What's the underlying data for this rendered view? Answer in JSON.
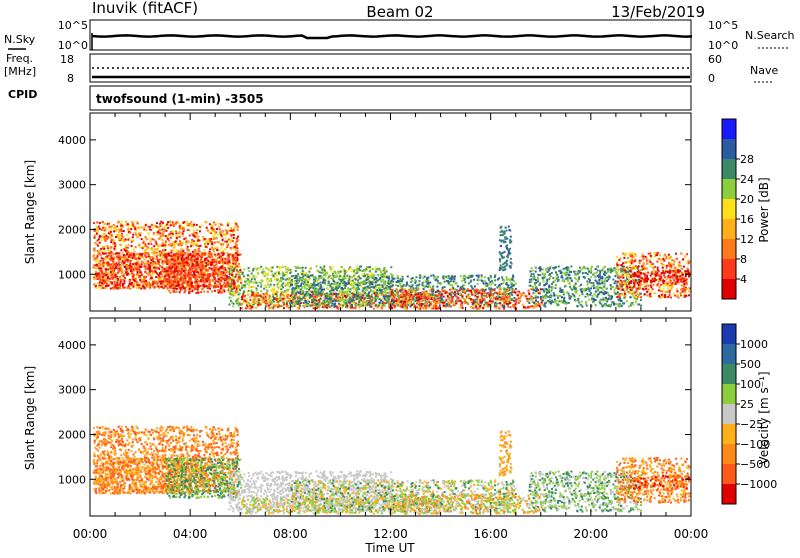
{
  "header": {
    "station": "Inuvik (fitACF)",
    "beam": "Beam 02",
    "date": "13/Feb/2019"
  },
  "top_panels": {
    "nsky_label": "N.Sky",
    "nsky_ticks": [
      "10^5",
      "10^0"
    ],
    "nsearch_label": "N.Search",
    "nsearch_ticks": [
      "10^5",
      "10^0"
    ],
    "freq_label_1": "Freq.",
    "freq_label_2": "[MHz]",
    "freq_ticks": [
      "18",
      "8"
    ],
    "nave_label": "Nave",
    "nave_ticks": [
      "60",
      "0"
    ],
    "cpid_label": "CPID",
    "cpid_value": "twofsound (1-min) -3505"
  },
  "chart_data": [
    {
      "type": "heatmap",
      "title": "",
      "xlabel": "",
      "ylabel": "Slant Range [km]",
      "xlim": [
        "00:00",
        "24:00"
      ],
      "ylim": [
        180,
        4600
      ],
      "y_ticks": [
        1000,
        2000,
        3000,
        4000
      ],
      "x_ticks": [
        "00:00",
        "04:00",
        "08:00",
        "12:00",
        "16:00",
        "20:00",
        "00:00"
      ],
      "colorbar": {
        "label": "Power [dB]",
        "ticks": [
          "4",
          "8",
          "12",
          "16",
          "20",
          "24",
          "28"
        ],
        "colors": [
          "#1a1aff",
          "#2d5aa0",
          "#3a8a68",
          "#8ccf3a",
          "#ffe01a",
          "#ffb01a",
          "#ff7a1a",
          "#ff3a1a",
          "#e00000"
        ]
      }
    },
    {
      "type": "heatmap",
      "title": "",
      "xlabel": "Time UT",
      "ylabel": "Slant Range [km]",
      "xlim": [
        "00:00",
        "24:00"
      ],
      "ylim": [
        180,
        4600
      ],
      "y_ticks": [
        1000,
        2000,
        3000,
        4000
      ],
      "x_ticks": [
        "00:00",
        "04:00",
        "08:00",
        "12:00",
        "16:00",
        "20:00",
        "00:00"
      ],
      "colorbar": {
        "label": "Velocity [m s⁻¹]",
        "ticks": [
          "1000",
          "500",
          "100",
          "25",
          "−25",
          "−100",
          "−500",
          "−1000"
        ],
        "colors": [
          "#1a3ab0",
          "#2d6aa0",
          "#3a8a68",
          "#8ccf3a",
          "#c8c8c8",
          "#ffb01a",
          "#ff8a1a",
          "#ff5a1a",
          "#e00000"
        ]
      }
    }
  ]
}
